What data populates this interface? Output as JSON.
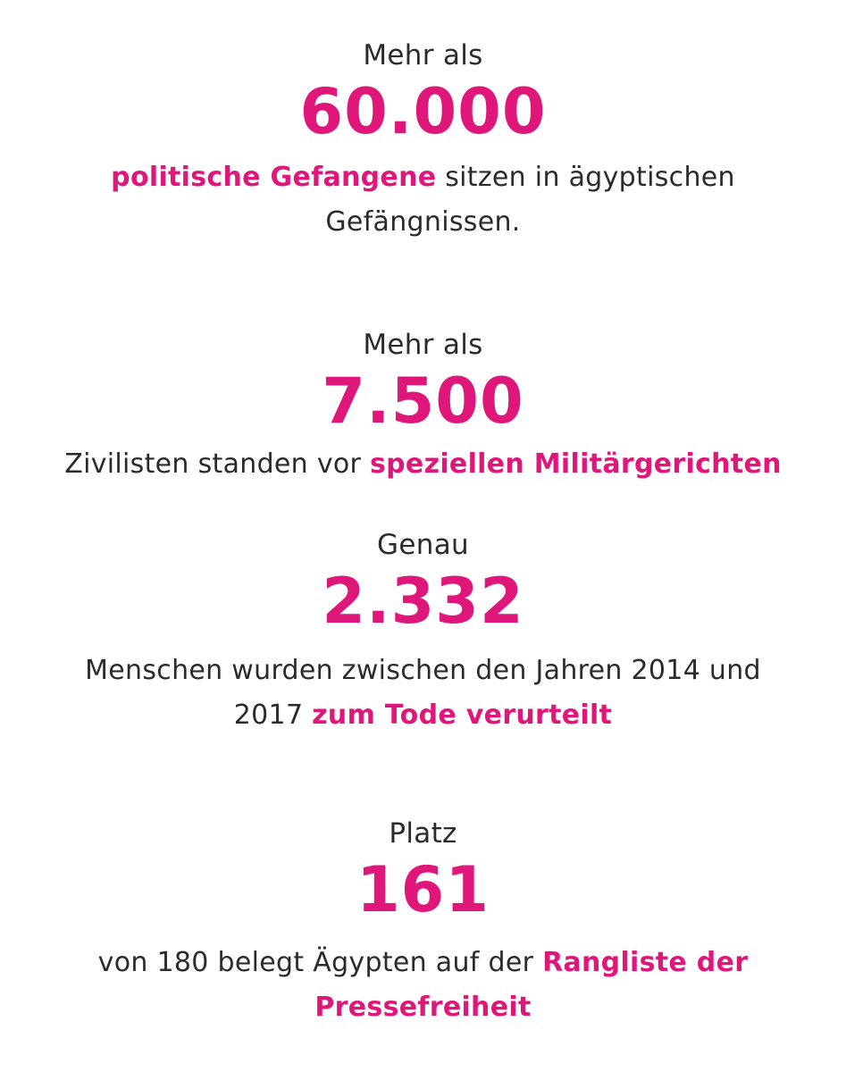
{
  "accent_color": "#e0177b",
  "text_color": "#2b2b2b",
  "stats": [
    {
      "intro": "Mehr als",
      "number": "60.000",
      "desc_highlight": "politische Gefangene",
      "desc_line1_rest": " sitzen in ägyptischen",
      "desc_line2": "Gefängnissen."
    },
    {
      "intro": "Mehr als",
      "number": "7.500",
      "desc_text": "Zivilisten standen vor ",
      "desc_highlight": "speziellen Militärgerichten"
    },
    {
      "intro": "Genau",
      "number": "2.332",
      "desc_line1": "Menschen wurden zwischen den Jahren 2014 und",
      "desc_line2_text": "2017 ",
      "desc_highlight": "zum Tode verurteilt"
    },
    {
      "intro": "Platz",
      "number": "161",
      "desc_text": "von 180 belegt Ägypten auf der ",
      "desc_highlight_line1": "Rangliste der",
      "desc_highlight_line2": "Pressefreiheit"
    }
  ]
}
